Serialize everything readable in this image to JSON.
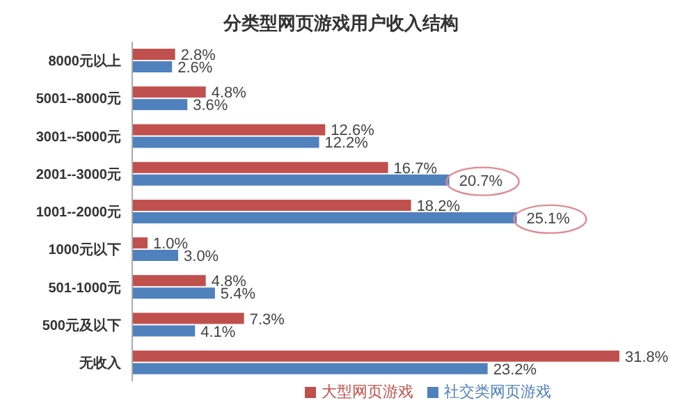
{
  "chart_data": {
    "type": "bar",
    "orientation": "horizontal",
    "title": "分类型网页游戏用户收入结构",
    "categories": [
      "8000元以上",
      "5001--8000元",
      "3001--5000元",
      "2001--3000元",
      "1001--2000元",
      "1000元以下",
      "501-1000元",
      "500元及以下",
      "无收入"
    ],
    "series": [
      {
        "name": "大型网页游戏",
        "color": "#c0504d",
        "values": [
          2.8,
          4.8,
          12.6,
          16.7,
          18.2,
          1.0,
          4.8,
          7.3,
          31.8
        ],
        "value_labels": [
          "2.8%",
          "4.8%",
          "12.6%",
          "16.7%",
          "18.2%",
          "1.0%",
          "4.8%",
          "7.3%",
          "31.8%"
        ]
      },
      {
        "name": "社交类网页游戏",
        "color": "#4f81bd",
        "values": [
          2.6,
          3.6,
          12.2,
          20.7,
          25.1,
          3.0,
          5.4,
          4.1,
          23.2
        ],
        "value_labels": [
          "2.6%",
          "3.6%",
          "12.2%",
          "20.7%",
          "25.1%",
          "3.0%",
          "5.4%",
          "4.1%",
          "23.2%"
        ]
      }
    ],
    "legend": "bottom"
  }
}
